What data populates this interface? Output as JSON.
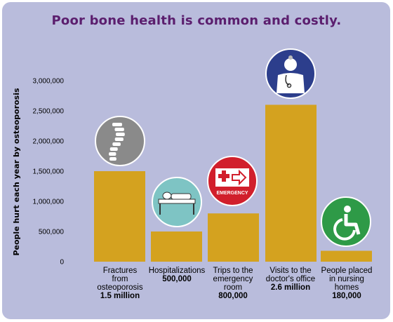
{
  "chart_data": {
    "type": "bar",
    "title": "Poor bone health is common and costly.",
    "ylabel": "People hurt each year by osteoporosis",
    "xlabel": "",
    "ylim": [
      0,
      3000000
    ],
    "yticks": [
      "3,000,000",
      "2,500,000",
      "2,000,000",
      "1,500,000",
      "1,000,000",
      "500,000",
      "0"
    ],
    "ytick_values": [
      3000000,
      2500000,
      2000000,
      1500000,
      1000000,
      500000,
      0
    ],
    "categories": [
      {
        "label_lines": [
          "Fractures",
          "from",
          "osteoporosis"
        ],
        "value_label": "1.5 million"
      },
      {
        "label_lines": [
          "Hospitalizations"
        ],
        "value_label": "500,000"
      },
      {
        "label_lines": [
          "Trips to the",
          "emergency",
          "room"
        ],
        "value_label": "800,000"
      },
      {
        "label_lines": [
          "Visits to the",
          "doctor's office"
        ],
        "value_label": "2.6 million"
      },
      {
        "label_lines": [
          "People placed",
          "in nursing",
          "homes"
        ],
        "value_label": "180,000"
      }
    ],
    "values": [
      1500000,
      500000,
      800000,
      2600000,
      180000
    ],
    "icons": [
      "spine-icon",
      "hospital-bed-icon",
      "emergency-sign-icon",
      "doctor-icon",
      "wheelchair-icon"
    ],
    "icon_emergency_text": "EMERGENCY",
    "colors": {
      "background": "#b9bcdc",
      "bar": "#d4a21f",
      "title": "#5b1e6e",
      "spine_circle": "#8a8a8a",
      "bed_circle": "#7ec4c4",
      "emergency_circle": "#d11f2c",
      "doctor_circle": "#2c3e8c",
      "wheelchair_circle": "#2e9a47"
    }
  }
}
